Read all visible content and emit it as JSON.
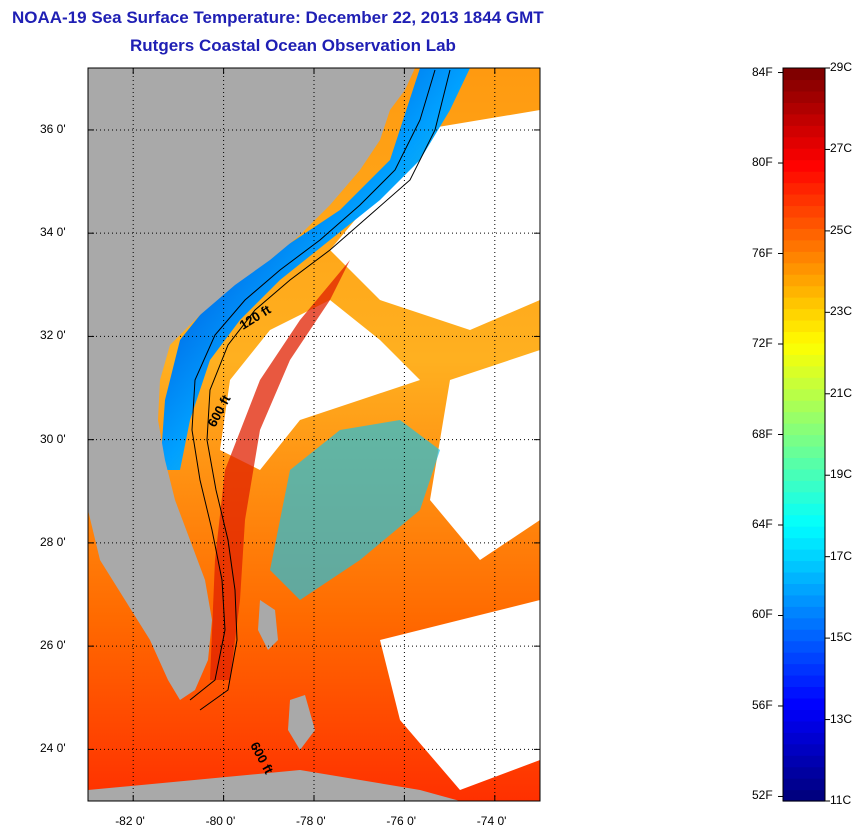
{
  "header": {
    "title": "NOAA-19 Sea Surface Temperature:  December 22, 2013 1844 GMT",
    "subtitle": "Rutgers Coastal Ocean Observation Lab"
  },
  "map": {
    "lat_ticks": [
      "36 0'",
      "34 0'",
      "32 0'",
      "30 0'",
      "28 0'",
      "26 0'",
      "24 0'"
    ],
    "lon_ticks": [
      "-82 0'",
      "-80 0'",
      "-78 0'",
      "-76 0'",
      "-74 0'"
    ],
    "lat_values": [
      36,
      34,
      32,
      30,
      28,
      26,
      24
    ],
    "lon_values": [
      -82,
      -80,
      -78,
      -76,
      -74
    ],
    "lat_range": [
      23,
      37.2
    ],
    "lon_range": [
      -83,
      -73
    ],
    "contour_labels": [
      "120 ft",
      "600 ft",
      "600 ft"
    ],
    "colors": {
      "land": "#a9a9a9",
      "cloud": "#ffffff"
    }
  },
  "colorbar": {
    "fahrenheit_labels": [
      "84F",
      "80F",
      "76F",
      "72F",
      "68F",
      "64F",
      "60F",
      "56F",
      "52F"
    ],
    "fahrenheit_values": [
      84,
      80,
      76,
      72,
      68,
      64,
      60,
      56,
      52
    ],
    "celsius_labels": [
      "29C",
      "27C",
      "25C",
      "23C",
      "21C",
      "19C",
      "17C",
      "15C",
      "13C",
      "11C"
    ],
    "celsius_values": [
      29,
      27,
      25,
      23,
      21,
      19,
      17,
      15,
      13,
      11
    ],
    "range_c": [
      11,
      29
    ],
    "palette": [
      "#000080",
      "#0000ff",
      "#0080ff",
      "#00ffff",
      "#80ff80",
      "#ffff00",
      "#ff8000",
      "#ff0000",
      "#800000"
    ]
  }
}
